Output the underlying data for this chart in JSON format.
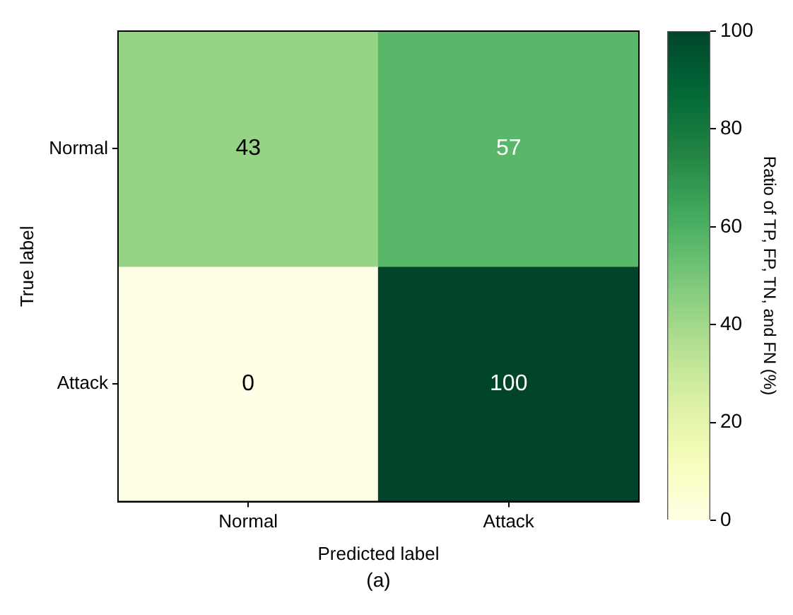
{
  "chart_data": {
    "type": "heatmap",
    "categories": [
      "Normal",
      "Attack"
    ],
    "y_categories": [
      "Normal",
      "Attack"
    ],
    "cells": [
      [
        43,
        57
      ],
      [
        0,
        100
      ]
    ],
    "data_labels": true,
    "xlabel": "Predicted label",
    "ylabel": "True label",
    "clabel": "Ratio of TP, FP, TN, and FN (%)",
    "clim": [
      0,
      100
    ],
    "cticks": [
      0,
      20,
      40,
      60,
      80,
      100
    ],
    "annotations": [
      "(a)"
    ]
  }
}
